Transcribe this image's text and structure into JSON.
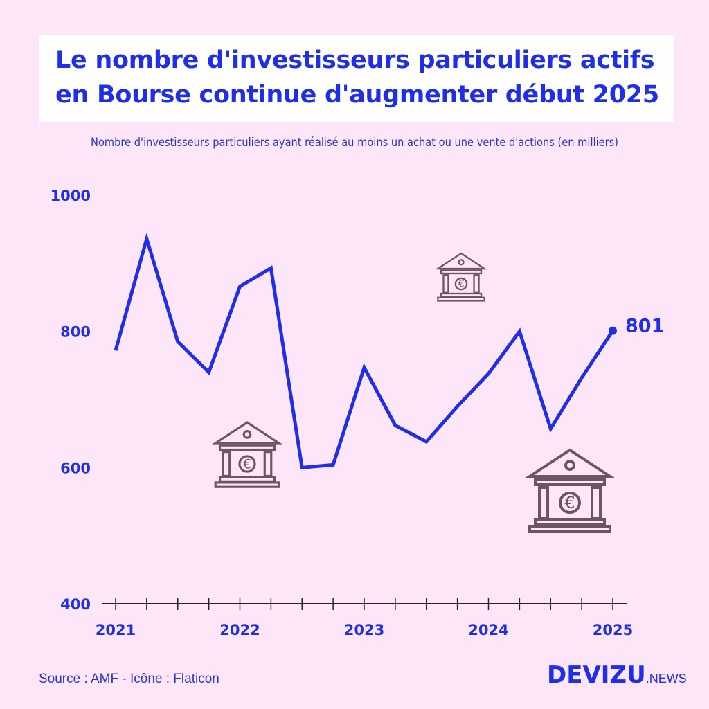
{
  "title": "Le nombre d'investisseurs particuliers actifs en Bourse continue d'augmenter début 2025",
  "subtitle": "Nombre d'investisseurs particuliers ayant réalisé au moins un achat ou une vente d'actions (en milliers)",
  "source": "Source : AMF - Icône : Flaticon",
  "logo": {
    "brand": "DEVIZU",
    "suffix": ".NEWS"
  },
  "colors": {
    "line": "#1f2ee8",
    "background": "#fde6f8",
    "icon": "#6e5466"
  },
  "chart_data": {
    "type": "line",
    "title": "Le nombre d'investisseurs particuliers actifs en Bourse continue d'augmenter début 2025",
    "ylabel": "en milliers",
    "ylim": [
      400,
      1000
    ],
    "yticks": [
      "400",
      "600",
      "800",
      "1000"
    ],
    "xtick_labels": [
      "2021",
      "2022",
      "2023",
      "2024",
      "2025"
    ],
    "x": [
      "2021T1",
      "2021T2",
      "2021T3",
      "2021T4",
      "2022T1",
      "2022T2",
      "2022T3",
      "2022T4",
      "2023T1",
      "2023T2",
      "2023T3",
      "2023T4",
      "2024T1",
      "2024T2",
      "2024T3",
      "2024T4",
      "2025T1"
    ],
    "values": [
      772,
      936,
      785,
      740,
      866,
      893,
      600,
      604,
      747,
      662,
      638,
      690,
      738,
      800,
      657,
      732,
      801
    ],
    "last_label": "801",
    "grid": false
  }
}
